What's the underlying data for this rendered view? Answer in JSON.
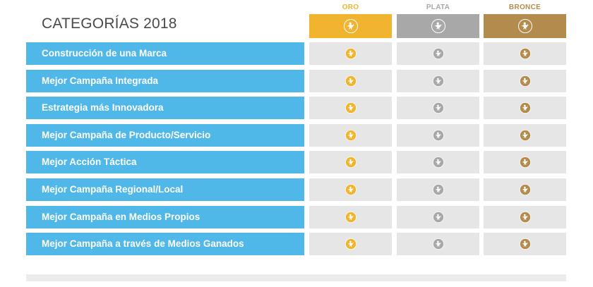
{
  "title": "CATEGORÍAS 2018",
  "colors": {
    "row_bg": "#4fb8e8",
    "cell_bg": "#e6e6e6",
    "oro": "#f0b42e",
    "plata": "#a8a8a8",
    "bronce": "#b38b4d"
  },
  "columns": [
    {
      "key": "oro",
      "label": "ORO",
      "label_color": "#f0b42e",
      "bar_color": "#f0b42e",
      "icon": "award-figure-icon"
    },
    {
      "key": "plata",
      "label": "PLATA",
      "label_color": "#a8a8a8",
      "bar_color": "#a8a8a8",
      "icon": "award-figure-icon"
    },
    {
      "key": "bronce",
      "label": "BRONCE",
      "label_color": "#b38b4d",
      "bar_color": "#b38b4d",
      "icon": "award-figure-icon"
    }
  ],
  "categories": [
    "Construcción de una Marca",
    "Mejor Campaña Integrada",
    "Estrategia más Innovadora",
    "Mejor Campaña de Producto/Servicio",
    "Mejor Acción Táctica",
    "Mejor Campaña Regional/Local",
    "Mejor Campaña en Medios Propios",
    "Mejor Campaña a través de Medios Ganados"
  ]
}
